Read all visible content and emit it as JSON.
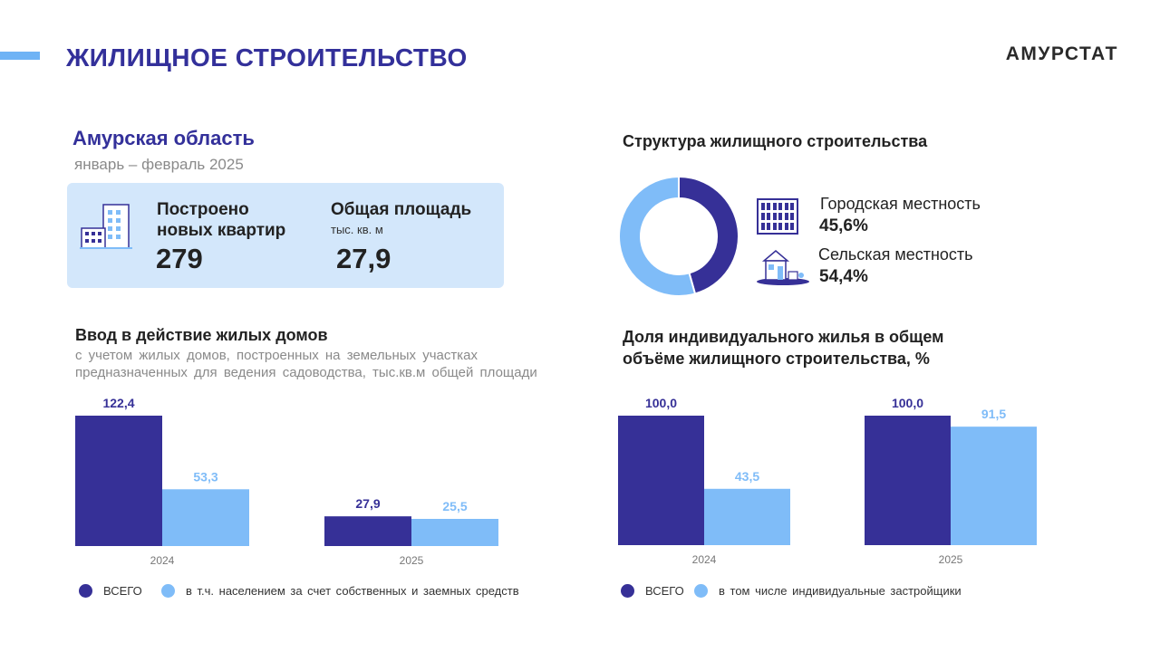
{
  "header": {
    "title": "ЖИЛИЩНОЕ  СТРОИТЕЛЬСТВО",
    "brand": "АМУРСТАТ",
    "accent_color": "#6fb3f5"
  },
  "summary": {
    "region": "Амурская  область",
    "period": "январь – февраль 2025",
    "apartments_label_line1": "Построено",
    "apartments_label_line2": "новых квартир",
    "apartments_value": "279",
    "area_label": "Общая площадь",
    "area_unit": "тыс. кв. м",
    "area_value": "27,9",
    "box_color": "#d3e7fb"
  },
  "colors": {
    "dark": "#363097",
    "light": "#7fbcf8"
  },
  "chart_data": [
    {
      "type": "bar",
      "title": "Ввод в действие жилых домов",
      "subtitle_line1": "с  учетом  жилых  домов,  построенных  на  земельных   участках",
      "subtitle_line2": "предназначенных  для  ведения  садоводства,  тыс.кв.м  общей  площади",
      "categories": [
        "2024",
        "2025"
      ],
      "series": [
        {
          "name": "ВСЕГО",
          "values": [
            122.4,
            27.9
          ],
          "labels": [
            "122,4",
            "27,9"
          ],
          "color": "#363097"
        },
        {
          "name": "в т.ч.  населением  за счет  собственных  и  заемных  средств",
          "values": [
            53.3,
            25.5
          ],
          "labels": [
            "53,3",
            "25,5"
          ],
          "color": "#7fbcf8"
        }
      ],
      "ylim": [
        0,
        122.4
      ],
      "grid": false,
      "legend": "bottom"
    },
    {
      "type": "pie",
      "title": "Структура жилищного строительства",
      "slices": [
        {
          "name": "Городская местность",
          "value": 45.6,
          "label": "45,6%",
          "color": "#363097",
          "icon": "apartment-building-icon"
        },
        {
          "name": "Сельская местность",
          "value": 54.4,
          "label": "54,4%",
          "color": "#7fbcf8",
          "icon": "house-icon"
        }
      ],
      "donut": true,
      "legend": "right"
    },
    {
      "type": "bar",
      "title_line1": "Доля индивидуального жилья в общем",
      "title_line2": "объёме жилищного строительства, %",
      "categories": [
        "2024",
        "2025"
      ],
      "series": [
        {
          "name": "ВСЕГО",
          "values": [
            100.0,
            100.0
          ],
          "labels": [
            "100,0",
            "100,0"
          ],
          "color": "#363097"
        },
        {
          "name": "в том  числе  индивидуальные  застройщики",
          "values": [
            43.5,
            91.5
          ],
          "labels": [
            "43,5",
            "91,5"
          ],
          "color": "#7fbcf8"
        }
      ],
      "ylim": [
        0,
        100
      ],
      "grid": false,
      "legend": "bottom"
    }
  ]
}
